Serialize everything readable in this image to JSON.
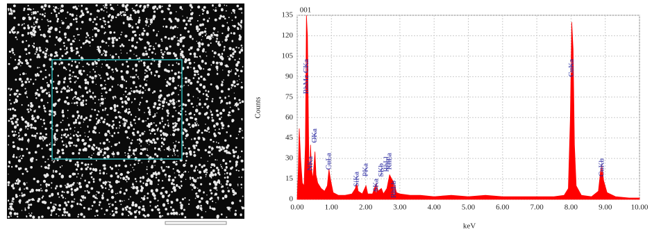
{
  "chart_data": {
    "type": "area",
    "annotation_top": "001",
    "ylabel": "Counts",
    "xlabel": "keV",
    "color": "#ff0000",
    "grid": true,
    "xlim": [
      0,
      10
    ],
    "ylim": [
      0,
      135
    ],
    "yticks": [
      0,
      15,
      30,
      45,
      60,
      75,
      90,
      105,
      120,
      135
    ],
    "xticks": [
      {
        "value": 0,
        "label": "0.00"
      },
      {
        "value": 1,
        "label": "1.00"
      },
      {
        "value": 2,
        "label": "2.00"
      },
      {
        "value": 3,
        "label": "3.00"
      },
      {
        "value": 4,
        "label": "4.00"
      },
      {
        "value": 5,
        "label": "5.00"
      },
      {
        "value": 6,
        "label": "6.00"
      },
      {
        "value": 7,
        "label": "7.00"
      },
      {
        "value": 8,
        "label": "8.00"
      },
      {
        "value": 9,
        "label": "9.00"
      },
      {
        "value": 10,
        "label": "10.00"
      }
    ],
    "x": [
      0.0,
      0.03,
      0.06,
      0.1,
      0.15,
      0.2,
      0.24,
      0.27,
      0.3,
      0.34,
      0.37,
      0.39,
      0.42,
      0.46,
      0.5,
      0.52,
      0.55,
      0.6,
      0.7,
      0.8,
      0.88,
      0.93,
      0.97,
      1.05,
      1.2,
      1.4,
      1.6,
      1.7,
      1.74,
      1.78,
      1.9,
      2.01,
      2.06,
      2.2,
      2.31,
      2.36,
      2.46,
      2.52,
      2.62,
      2.7,
      2.76,
      2.83,
      2.9,
      3.0,
      3.3,
      3.6,
      4.0,
      4.5,
      5.0,
      5.5,
      6.0,
      6.5,
      7.0,
      7.5,
      7.8,
      7.92,
      7.98,
      8.02,
      8.06,
      8.1,
      8.15,
      8.3,
      8.6,
      8.8,
      8.86,
      8.9,
      8.95,
      9.05,
      9.3,
      9.7,
      10.0
    ],
    "values": [
      0,
      20,
      52,
      30,
      12,
      10,
      40,
      135,
      120,
      30,
      20,
      40,
      22,
      15,
      28,
      35,
      18,
      12,
      8,
      6,
      10,
      22,
      15,
      5,
      3,
      3,
      4,
      8,
      12,
      6,
      4,
      10,
      4,
      4,
      12,
      6,
      8,
      4,
      8,
      18,
      15,
      12,
      5,
      4,
      3,
      3,
      2,
      3,
      2,
      3,
      2,
      2,
      2,
      2,
      3,
      8,
      60,
      130,
      110,
      40,
      10,
      3,
      2,
      6,
      20,
      26,
      14,
      5,
      2,
      1,
      1
    ],
    "annotations": [
      {
        "text": "RhMz CKa",
        "x": 0.27
      },
      {
        "text": "NKa",
        "x": 0.39
      },
      {
        "text": "OKa",
        "x": 0.52
      },
      {
        "text": "CuLa",
        "x": 0.93
      },
      {
        "text": "SiKa",
        "x": 1.74
      },
      {
        "text": "PKa",
        "x": 2.01
      },
      {
        "text": "SKa",
        "x": 2.31
      },
      {
        "text": "SKb",
        "x": 2.46
      },
      {
        "text": "RhLl",
        "x": 2.62
      },
      {
        "text": "RhLa",
        "x": 2.7
      },
      {
        "text": "RhLb",
        "x": 2.83
      },
      {
        "text": "CuKa",
        "x": 8.02
      },
      {
        "text": "CuKb",
        "x": 8.9
      }
    ]
  }
}
